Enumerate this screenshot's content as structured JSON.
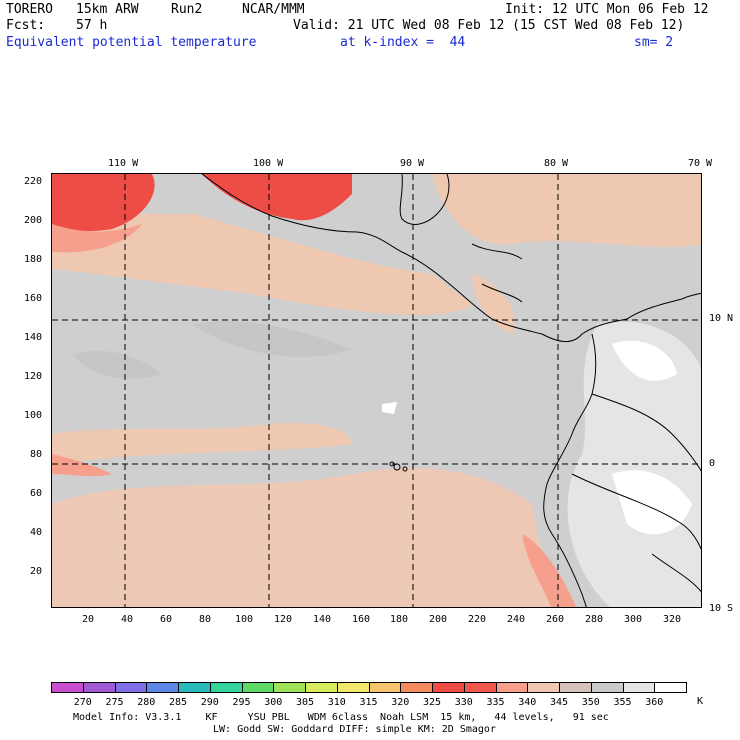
{
  "header": {
    "model": "TORERO",
    "resolution": "15km ARW",
    "run": "Run2",
    "org": "NCAR/MMM",
    "init": "Init: 12 UTC Mon 06 Feb 12",
    "fcst_label": "Fcst:",
    "fcst_value": "57 h",
    "valid": "Valid: 21 UTC Wed 08 Feb 12 (15 CST Wed 08 Feb 12)",
    "field": "Equivalent potential temperature",
    "level": "at k-index =  44",
    "smoothing": "sm= 2"
  },
  "map": {
    "top_lon_labels": [
      "110 W",
      "100 W",
      "90 W",
      "80 W",
      "70 W"
    ],
    "right_lat_labels": [
      "10 N",
      "0",
      "10 S"
    ],
    "left_ticks": [
      "220",
      "200",
      "180",
      "160",
      "140",
      "120",
      "100",
      "80",
      "60",
      "40",
      "20"
    ],
    "bottom_ticks": [
      "20",
      "40",
      "60",
      "80",
      "100",
      "120",
      "140",
      "160",
      "180",
      "200",
      "220",
      "240",
      "260",
      "280",
      "300",
      "320"
    ]
  },
  "colorbar": {
    "labels": [
      "270",
      "275",
      "280",
      "285",
      "290",
      "295",
      "300",
      "305",
      "310",
      "315",
      "320",
      "325",
      "330",
      "335",
      "340",
      "345",
      "350",
      "355",
      "360"
    ],
    "unit": "K",
    "colors": [
      "#c94fcf",
      "#a05ad3",
      "#7f6fe6",
      "#5e88e8",
      "#2cb9b9",
      "#35d49d",
      "#5ed966",
      "#9fe158",
      "#d7ec5f",
      "#f2e96c",
      "#f6c46e",
      "#f38b5d",
      "#ee4d45",
      "#f0584c",
      "#f79f8d",
      "#efc8b1",
      "#d4c2bb",
      "#cacaca",
      "#e5e5e5",
      "#ffffff"
    ]
  },
  "footer": {
    "line1": "Model Info: V3.3.1    KF     YSU PBL   WDM 6class  Noah LSM  15 km,   44 levels,   91 sec",
    "line2": "LW: Godd SW: Goddard DIFF: simple KM: 2D Smagor"
  }
}
